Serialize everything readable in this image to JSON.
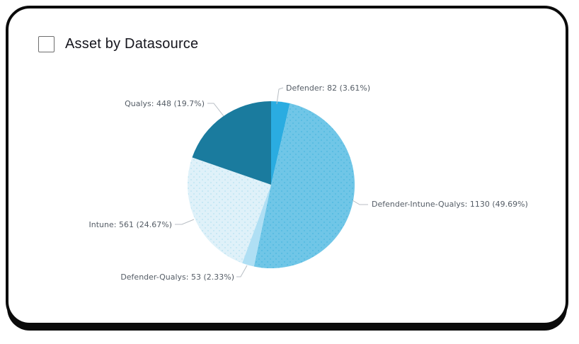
{
  "card": {
    "title": "Asset by Datasource"
  },
  "chart_data": {
    "type": "pie",
    "title": "Asset by Datasource",
    "legend_position": "none",
    "labels_style": "callout-leader-lines",
    "start_angle_deg": 0,
    "direction": "clockwise",
    "slices": [
      {
        "name": "Defender",
        "value": 82,
        "pct": "3.61",
        "label": "Defender: 82 (3.61%)",
        "color": "#2AACE1",
        "texture": "solid"
      },
      {
        "name": "Defender-Intune-Qualys",
        "value": 1130,
        "pct": "49.69",
        "label": "Defender-Intune-Qualys: 1130 (49.69%)",
        "color": "#70C6E7",
        "texture": "dots",
        "dot_color": "#52BAE0"
      },
      {
        "name": "Defender-Qualys",
        "value": 53,
        "pct": "2.33",
        "label": "Defender-Qualys: 53 (2.33%)",
        "color": "#AFDFF4",
        "texture": "solid"
      },
      {
        "name": "Intune",
        "value": 561,
        "pct": "24.67",
        "label": "Intune: 561 (24.67%)",
        "color": "#DFF1F9",
        "texture": "dots",
        "dot_color": "#BFE5F3"
      },
      {
        "name": "Qualys",
        "value": 448,
        "pct": "19.7",
        "label": "Qualys: 448 (19.7%)",
        "color": "#1A7B9E",
        "texture": "solid"
      }
    ]
  }
}
